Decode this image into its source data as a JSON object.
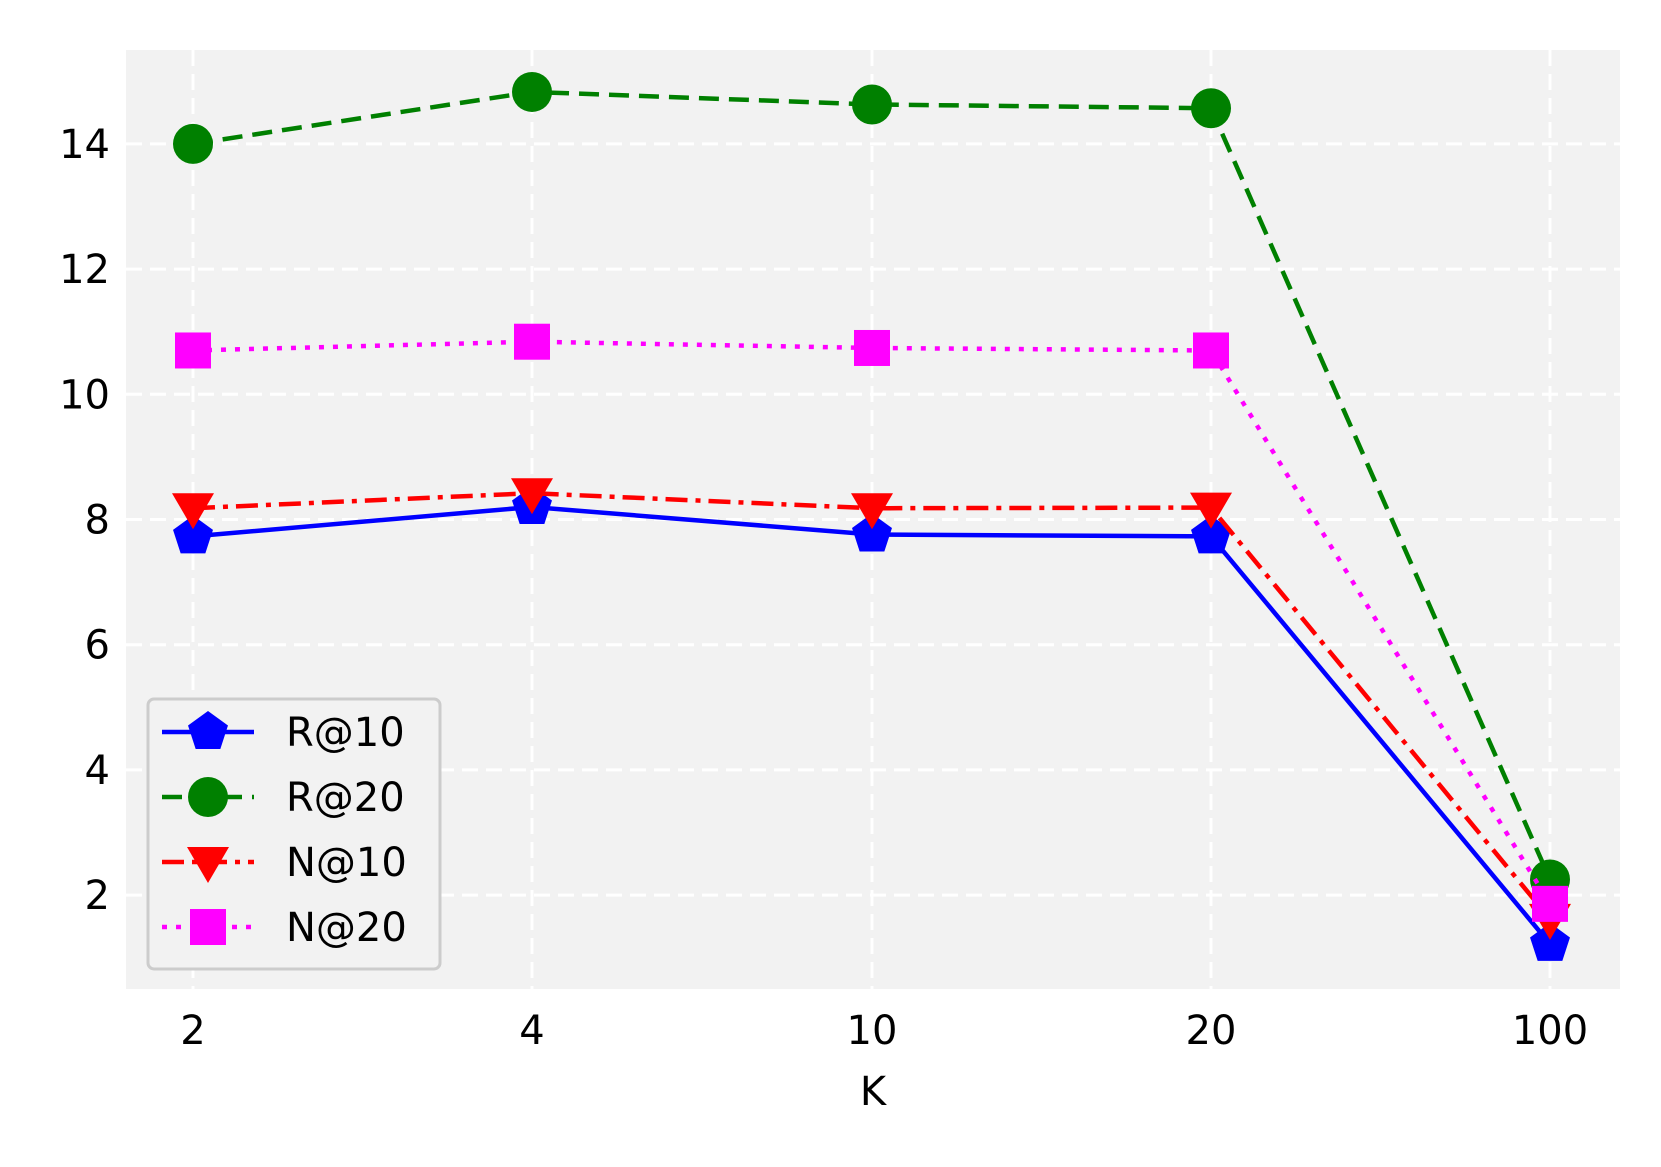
{
  "chart_data": {
    "type": "line",
    "title": "",
    "xlabel": "K",
    "ylabel": "",
    "x": [
      "2",
      "4",
      "10",
      "20",
      "100"
    ],
    "x_scale": "categorical",
    "ylim": [
      0.5,
      15.5
    ],
    "yticks": [
      2,
      4,
      6,
      8,
      10,
      12,
      14
    ],
    "grid": true,
    "grid_style": "dashed-white",
    "plot_background": "#f2f2f2",
    "legend_position": "lower-left",
    "series": [
      {
        "name": "R@10",
        "values": [
          7.73,
          8.2,
          7.76,
          7.73,
          1.22
        ],
        "color": "#0000ff",
        "marker": "pentagon",
        "line_style": "solid"
      },
      {
        "name": "R@20",
        "values": [
          14.0,
          14.83,
          14.63,
          14.57,
          2.25
        ],
        "color": "#008000",
        "marker": "circle",
        "line_style": "dashed"
      },
      {
        "name": "N@10",
        "values": [
          8.18,
          8.42,
          8.18,
          8.19,
          1.62
        ],
        "color": "#ff0000",
        "marker": "triangle-down",
        "line_style": "dashdot"
      },
      {
        "name": "N@20",
        "values": [
          10.7,
          10.84,
          10.74,
          10.7,
          1.86
        ],
        "color": "#ff00ff",
        "marker": "square",
        "line_style": "dotted"
      }
    ]
  }
}
